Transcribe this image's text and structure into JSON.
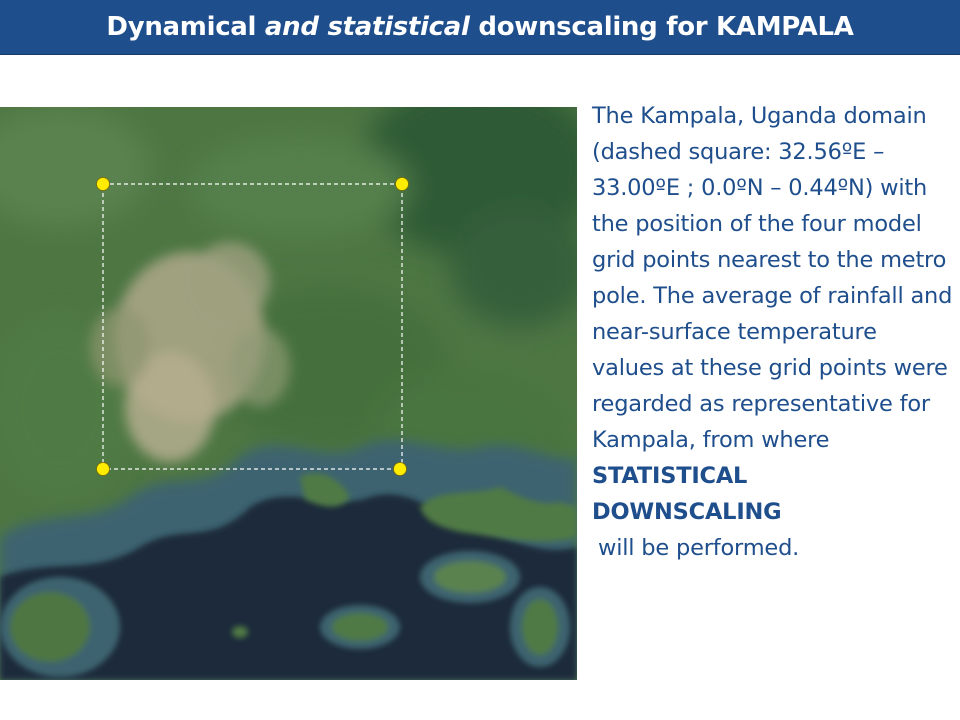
{
  "header": {
    "title_part1": "Dynamical ",
    "title_part2": "and statistical",
    "title_part3": " downscaling for KAMPALA"
  },
  "map": {
    "grid_points": 4,
    "colors": {
      "land": "#4f7a45",
      "urban": "#b8b08e",
      "water": "#1d2a3a",
      "shallow_water": "#3e6470",
      "grid_point": "#ffec00",
      "domain_line": "#ffffff"
    }
  },
  "caption": {
    "body": "The Kampala, Uganda domain (dashed square: 32.56ºE – 33.00ºE ; 0.0ºN – 0.44ºN) with the position of the four model grid points nearest to the metro pole. The average of rainfall and near-surface temperature values at these grid points were regarded as representative for Kampala, from where",
    "emphasis_line1": "STATISTICAL",
    "emphasis_line2": "DOWNSCALING",
    "tail": "will be performed."
  },
  "colors": {
    "title_bar": "#1f4e8c",
    "title_text": "#ffffff",
    "caption_text": "#1f4e8c"
  }
}
